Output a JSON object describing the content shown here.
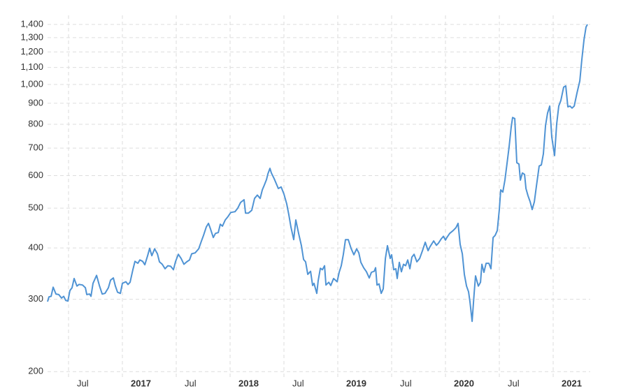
{
  "chart_data": {
    "type": "line",
    "log_scale": true,
    "grid": true,
    "color": "#4f93d4",
    "x": [
      2016.305,
      2016.318,
      2016.338,
      2016.357,
      2016.383,
      2016.409,
      2016.435,
      2016.455,
      2016.474,
      2016.494,
      2016.513,
      2016.532,
      2016.552,
      2016.578,
      2016.597,
      2016.63,
      2016.656,
      2016.669,
      2016.695,
      2016.708,
      2016.727,
      2016.76,
      2016.786,
      2016.812,
      2016.838,
      2016.87,
      2016.89,
      2016.916,
      2016.935,
      2016.955,
      2016.981,
      2017.0,
      2017.032,
      2017.052,
      2017.071,
      2017.097,
      2017.117,
      2017.143,
      2017.162,
      2017.188,
      2017.208,
      2017.234,
      2017.253,
      2017.273,
      2017.299,
      2017.325,
      2017.344,
      2017.37,
      2017.396,
      2017.422,
      2017.448,
      2017.474,
      2017.494,
      2017.519,
      2017.545,
      2017.571,
      2017.597,
      2017.623,
      2017.643,
      2017.675,
      2017.708,
      2017.734,
      2017.753,
      2017.779,
      2017.799,
      2017.818,
      2017.844,
      2017.864,
      2017.89,
      2017.909,
      2017.929,
      2017.955,
      2017.981,
      2018.006,
      2018.045,
      2018.071,
      2018.097,
      2018.13,
      2018.143,
      2018.169,
      2018.201,
      2018.227,
      2018.253,
      2018.279,
      2018.299,
      2018.318,
      2018.338,
      2018.351,
      2018.37,
      2018.383,
      2018.409,
      2018.448,
      2018.474,
      2018.5,
      2018.526,
      2018.545,
      2018.565,
      2018.591,
      2018.61,
      2018.636,
      2018.662,
      2018.682,
      2018.701,
      2018.721,
      2018.747,
      2018.766,
      2018.779,
      2018.805,
      2018.818,
      2018.838,
      2018.857,
      2018.877,
      2018.89,
      2018.916,
      2018.935,
      2018.961,
      2018.994,
      2019.013,
      2019.032,
      2019.052,
      2019.071,
      2019.097,
      2019.123,
      2019.149,
      2019.175,
      2019.195,
      2019.214,
      2019.24,
      2019.266,
      2019.292,
      2019.312,
      2019.338,
      2019.351,
      2019.364,
      2019.383,
      2019.403,
      2019.422,
      2019.442,
      2019.461,
      2019.487,
      2019.5,
      2019.519,
      2019.539,
      2019.552,
      2019.571,
      2019.591,
      2019.61,
      2019.63,
      2019.649,
      2019.669,
      2019.688,
      2019.708,
      2019.734,
      2019.76,
      2019.786,
      2019.812,
      2019.838,
      2019.857,
      2019.89,
      2019.916,
      2019.935,
      2019.961,
      2019.981,
      2020.0,
      2020.013,
      2020.039,
      2020.071,
      2020.097,
      2020.117,
      2020.136,
      2020.156,
      2020.175,
      2020.195,
      2020.214,
      2020.227,
      2020.247,
      2020.266,
      2020.279,
      2020.305,
      2020.325,
      2020.338,
      2020.357,
      2020.377,
      2020.403,
      2020.422,
      2020.442,
      2020.461,
      2020.481,
      2020.5,
      2020.513,
      2020.532,
      2020.552,
      2020.571,
      2020.591,
      2020.61,
      2020.623,
      2020.643,
      2020.662,
      2020.682,
      2020.695,
      2020.714,
      2020.734,
      2020.747,
      2020.766,
      2020.786,
      2020.805,
      2020.825,
      2020.844,
      2020.87,
      2020.89,
      2020.909,
      2020.929,
      2020.948,
      2020.968,
      2020.987,
      2021.013,
      2021.032,
      2021.052,
      2021.071,
      2021.097,
      2021.117,
      2021.136,
      2021.156,
      2021.175,
      2021.195,
      2021.221,
      2021.247,
      2021.266,
      2021.286,
      2021.305,
      2021.318
    ],
    "values": [
      296,
      304,
      305,
      321,
      309,
      308,
      302,
      305,
      298,
      297,
      315,
      320,
      337,
      323,
      326,
      325,
      320,
      308,
      309,
      305,
      328,
      343,
      324,
      309,
      310,
      320,
      334,
      338,
      323,
      312,
      310,
      328,
      331,
      326,
      330,
      354,
      371,
      367,
      374,
      371,
      364,
      383,
      399,
      383,
      398,
      387,
      370,
      365,
      356,
      362,
      361,
      354,
      371,
      386,
      377,
      365,
      370,
      374,
      387,
      389,
      398,
      416,
      429,
      450,
      459,
      445,
      424,
      434,
      436,
      457,
      452,
      468,
      477,
      488,
      490,
      500,
      516,
      524,
      486,
      486,
      494,
      528,
      538,
      528,
      554,
      569,
      587,
      606,
      625,
      609,
      590,
      558,
      563,
      541,
      512,
      482,
      450,
      419,
      468,
      434,
      405,
      375,
      370,
      345,
      351,
      324,
      328,
      310,
      333,
      357,
      354,
      362,
      325,
      330,
      324,
      337,
      331,
      349,
      362,
      386,
      419,
      419,
      399,
      385,
      398,
      389,
      369,
      358,
      350,
      338,
      349,
      351,
      358,
      325,
      327,
      310,
      318,
      377,
      405,
      377,
      385,
      354,
      356,
      337,
      369,
      350,
      365,
      362,
      374,
      356,
      380,
      386,
      370,
      377,
      394,
      413,
      394,
      403,
      416,
      406,
      411,
      421,
      427,
      418,
      424,
      434,
      441,
      448,
      459,
      408,
      387,
      345,
      323,
      313,
      296,
      265,
      310,
      342,
      323,
      330,
      365,
      349,
      367,
      367,
      356,
      424,
      429,
      441,
      496,
      554,
      547,
      585,
      642,
      705,
      788,
      831,
      826,
      645,
      640,
      585,
      609,
      604,
      558,
      536,
      518,
      496,
      518,
      565,
      633,
      637,
      678,
      795,
      852,
      886,
      745,
      671,
      801,
      886,
      914,
      985,
      992,
      882,
      886,
      876,
      886,
      954,
      1020,
      1150,
      1285,
      1380,
      1400
    ],
    "xlim": [
      2016.305,
      2021.318
    ],
    "xticks": [
      {
        "value": 2016.5,
        "label": "Jul"
      },
      2017,
      {
        "value": 2017.5,
        "label": "Jul"
      },
      2018,
      {
        "value": 2018.5,
        "label": "Jul"
      },
      2019,
      {
        "value": 2019.5,
        "label": "Jul"
      },
      2020,
      {
        "value": 2020.5,
        "label": "Jul"
      },
      2021
    ],
    "ylim": [
      194,
      1473
    ],
    "yticks": [
      200,
      300,
      400,
      500,
      600,
      700,
      800,
      900,
      {
        "value": 1000,
        "label": "1,000"
      },
      {
        "value": 1100,
        "label": "1,100"
      },
      {
        "value": 1200,
        "label": "1,200"
      },
      {
        "value": 1300,
        "label": "1,300"
      },
      {
        "value": 1400,
        "label": "1,400"
      }
    ]
  }
}
